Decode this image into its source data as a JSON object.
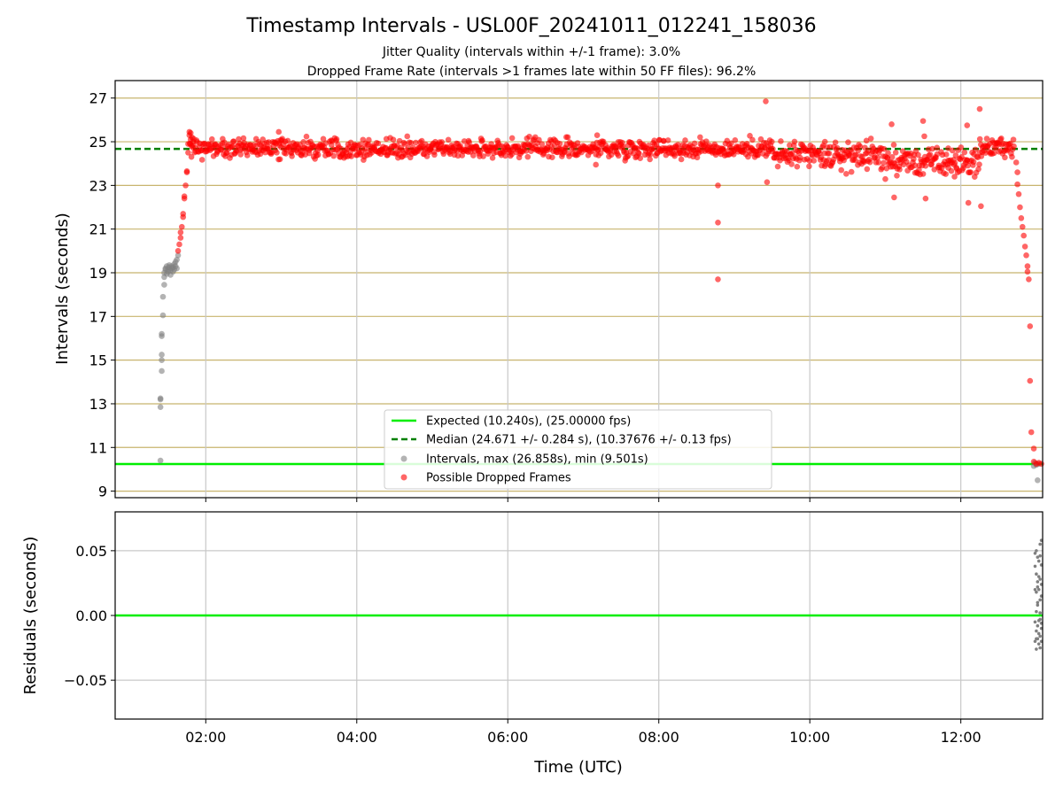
{
  "title": "Timestamp Intervals - USL00F_20241011_012241_158036",
  "subtitle1": "Jitter Quality (intervals within +/-1 frame): 3.0%",
  "subtitle2": "Dropped Frame Rate (intervals >1 frames late within 50 FF files): 96.2%",
  "colors": {
    "expected": "#00ee00",
    "median": "#008000",
    "intervals": "#808080",
    "dropped": "#ff0000",
    "hgrid": "#c8b46e",
    "vgrid": "#c8c8c8"
  },
  "legend": {
    "expected": "Expected (10.240s), (25.00000 fps)",
    "median": "Median (24.671 +/- 0.284 s), (10.37676 +/- 0.13 fps)",
    "intervals": "Intervals, max (26.858s), min (9.501s)",
    "dropped": "Possible Dropped Frames"
  },
  "chart_data": [
    {
      "type": "scatter",
      "ylabel": "Intervals (seconds)",
      "xlim": [
        "00:48",
        "13:05"
      ],
      "ylim": [
        8.7,
        27.8
      ],
      "yticks": [
        9,
        11,
        13,
        15,
        17,
        19,
        21,
        23,
        25,
        27
      ],
      "xticks": [
        "02:00",
        "04:00",
        "06:00",
        "08:00",
        "10:00",
        "12:00"
      ],
      "hlines": {
        "expected": 10.24,
        "median": 24.671
      },
      "series": [
        {
          "name": "Intervals, max (26.858s), min (9.501s)",
          "points": [
            [
              "01:24",
              10.4
            ],
            [
              "01:24",
              12.85
            ],
            [
              "01:24",
              13.2
            ],
            [
              "01:24",
              13.25
            ],
            [
              "01:25",
              14.5
            ],
            [
              "01:25",
              15.0
            ],
            [
              "01:25",
              15.25
            ],
            [
              "01:25",
              16.1
            ],
            [
              "01:25",
              16.2
            ],
            [
              "01:26",
              17.05
            ],
            [
              "01:26",
              17.9
            ],
            [
              "01:27",
              18.45
            ],
            [
              "01:27",
              18.8
            ],
            [
              "01:27",
              19.0
            ],
            [
              "01:28",
              19.15
            ],
            [
              "01:28",
              19.2
            ],
            [
              "01:29",
              18.95
            ],
            [
              "01:29",
              19.3
            ],
            [
              "01:30",
              19.05
            ],
            [
              "01:30",
              19.15
            ],
            [
              "01:31",
              19.25
            ],
            [
              "01:31",
              19.35
            ],
            [
              "01:32",
              19.1
            ],
            [
              "01:32",
              18.9
            ],
            [
              "01:33",
              19.2
            ],
            [
              "01:33",
              19.3
            ],
            [
              "01:34",
              19.05
            ],
            [
              "01:34",
              19.25
            ],
            [
              "01:35",
              19.4
            ],
            [
              "01:35",
              19.15
            ],
            [
              "01:36",
              19.3
            ],
            [
              "01:36",
              19.5
            ],
            [
              "01:37",
              19.2
            ],
            [
              "01:37",
              19.6
            ],
            [
              "01:38",
              19.8
            ],
            [
              "12:58",
              10.15
            ],
            [
              "12:59",
              10.3
            ],
            [
              "13:00",
              10.2
            ],
            [
              "13:01",
              9.5
            ],
            [
              "13:02",
              10.25
            ]
          ]
        },
        {
          "name": "Possible Dropped Frames",
          "bands": [
            {
              "x": [
                "01:47",
                "08:00"
              ],
              "center": 24.7,
              "spread": 0.3
            },
            {
              "x": [
                "08:00",
                "09:30"
              ],
              "center": 24.7,
              "spread": 0.3
            },
            {
              "x": [
                "09:30",
                "11:00"
              ],
              "center": 24.35,
              "spread": 0.45
            },
            {
              "x": [
                "11:00",
                "12:15"
              ],
              "center": 24.05,
              "spread": 0.45
            },
            {
              "x": [
                "12:15",
                "12:42"
              ],
              "center": 24.75,
              "spread": 0.3
            }
          ],
          "points": [
            [
              "01:38",
              20.0
            ],
            [
              "01:39",
              20.3
            ],
            [
              "01:40",
              20.6
            ],
            [
              "01:40",
              20.85
            ],
            [
              "01:41",
              21.1
            ],
            [
              "01:42",
              21.55
            ],
            [
              "01:42",
              21.7
            ],
            [
              "01:43",
              22.4
            ],
            [
              "01:43",
              22.5
            ],
            [
              "01:44",
              23.0
            ],
            [
              "01:45",
              23.6
            ],
            [
              "01:45",
              23.65
            ],
            [
              "01:46",
              24.5
            ],
            [
              "01:46",
              24.9
            ],
            [
              "01:47",
              25.3
            ],
            [
              "01:47",
              25.45
            ],
            [
              "01:48",
              25.4
            ],
            [
              "01:48",
              25.1
            ],
            [
              "01:49",
              25.2
            ],
            [
              "01:50",
              25.0
            ],
            [
              "02:58",
              25.45
            ],
            [
              "02:59",
              24.2
            ],
            [
              "07:11",
              25.3
            ],
            [
              "07:10",
              23.95
            ],
            [
              "08:47",
              23.0
            ],
            [
              "08:47",
              21.3
            ],
            [
              "08:47",
              18.7
            ],
            [
              "09:25",
              26.85
            ],
            [
              "09:26",
              23.15
            ],
            [
              "10:12",
              25.0
            ],
            [
              "10:25",
              23.7
            ],
            [
              "10:45",
              25.05
            ],
            [
              "11:05",
              25.8
            ],
            [
              "11:07",
              22.45
            ],
            [
              "11:30",
              25.95
            ],
            [
              "11:31",
              25.25
            ],
            [
              "11:32",
              22.4
            ],
            [
              "11:50",
              24.7
            ],
            [
              "11:55",
              23.4
            ],
            [
              "12:05",
              25.75
            ],
            [
              "12:06",
              22.2
            ],
            [
              "12:15",
              26.5
            ],
            [
              "12:16",
              22.05
            ],
            [
              "12:44",
              24.05
            ],
            [
              "12:45",
              23.6
            ],
            [
              "12:45",
              23.05
            ],
            [
              "12:46",
              22.6
            ],
            [
              "12:47",
              22.0
            ],
            [
              "12:48",
              21.5
            ],
            [
              "12:49",
              21.1
            ],
            [
              "12:50",
              20.7
            ],
            [
              "12:51",
              20.2
            ],
            [
              "12:52",
              19.8
            ],
            [
              "12:53",
              19.3
            ],
            [
              "12:53",
              19.05
            ],
            [
              "12:54",
              18.7
            ],
            [
              "12:55",
              16.55
            ],
            [
              "12:55",
              14.05
            ],
            [
              "12:56",
              11.7
            ],
            [
              "12:58",
              10.95
            ],
            [
              "12:58",
              10.35
            ],
            [
              "13:00",
              10.25
            ],
            [
              "13:02",
              10.3
            ],
            [
              "13:04",
              10.25
            ]
          ]
        }
      ]
    },
    {
      "type": "scatter",
      "xlabel": "Time (UTC)",
      "ylabel": "Residuals (seconds)",
      "xlim": [
        "00:48",
        "13:05"
      ],
      "ylim": [
        -0.08,
        0.08
      ],
      "yticks": [
        -0.05,
        0.0,
        0.05
      ],
      "yticklabels": [
        "−0.05",
        "0.00",
        "0.05"
      ],
      "xticks": [
        "02:00",
        "04:00",
        "06:00",
        "08:00",
        "10:00",
        "12:00"
      ],
      "hlines": {
        "expected": 0.0
      },
      "series": [
        {
          "name": "Residuals",
          "points": [
            [
              "12:59",
              0.048
            ],
            [
              "12:59",
              0.02
            ],
            [
              "12:59",
              -0.005
            ],
            [
              "12:59",
              -0.02
            ],
            [
              "13:00",
              0.05
            ],
            [
              "13:00",
              0.032
            ],
            [
              "13:00",
              0.018
            ],
            [
              "13:00",
              0.003
            ],
            [
              "13:00",
              -0.012
            ],
            [
              "13:00",
              -0.026
            ],
            [
              "13:01",
              0.045
            ],
            [
              "13:01",
              0.026
            ],
            [
              "13:01",
              0.022
            ],
            [
              "13:01",
              0.008
            ],
            [
              "13:01",
              -0.008
            ],
            [
              "13:01",
              -0.018
            ],
            [
              "13:02",
              0.042
            ],
            [
              "13:02",
              0.02
            ],
            [
              "13:02",
              -0.004
            ],
            [
              "13:02",
              -0.022
            ],
            [
              "13:03",
              0.055
            ],
            [
              "13:03",
              0.046
            ],
            [
              "13:03",
              0.028
            ],
            [
              "13:03",
              0.012
            ],
            [
              "13:03",
              -0.003
            ],
            [
              "13:03",
              -0.016
            ],
            [
              "13:03",
              -0.025
            ],
            [
              "13:04",
              0.039
            ],
            [
              "13:04",
              0.015
            ],
            [
              "13:04",
              -0.01
            ],
            [
              "13:04",
              -0.02
            ],
            [
              "13:04",
              0.058
            ],
            [
              "12:59",
              0.038
            ],
            [
              "13:00",
              -0.018
            ],
            [
              "13:01",
              0.01
            ],
            [
              "13:02",
              0.03
            ],
            [
              "13:02",
              -0.014
            ],
            [
              "13:03",
              0.002
            ],
            [
              "13:04",
              0.024
            ],
            [
              "13:04",
              -0.006
            ]
          ]
        }
      ]
    }
  ]
}
